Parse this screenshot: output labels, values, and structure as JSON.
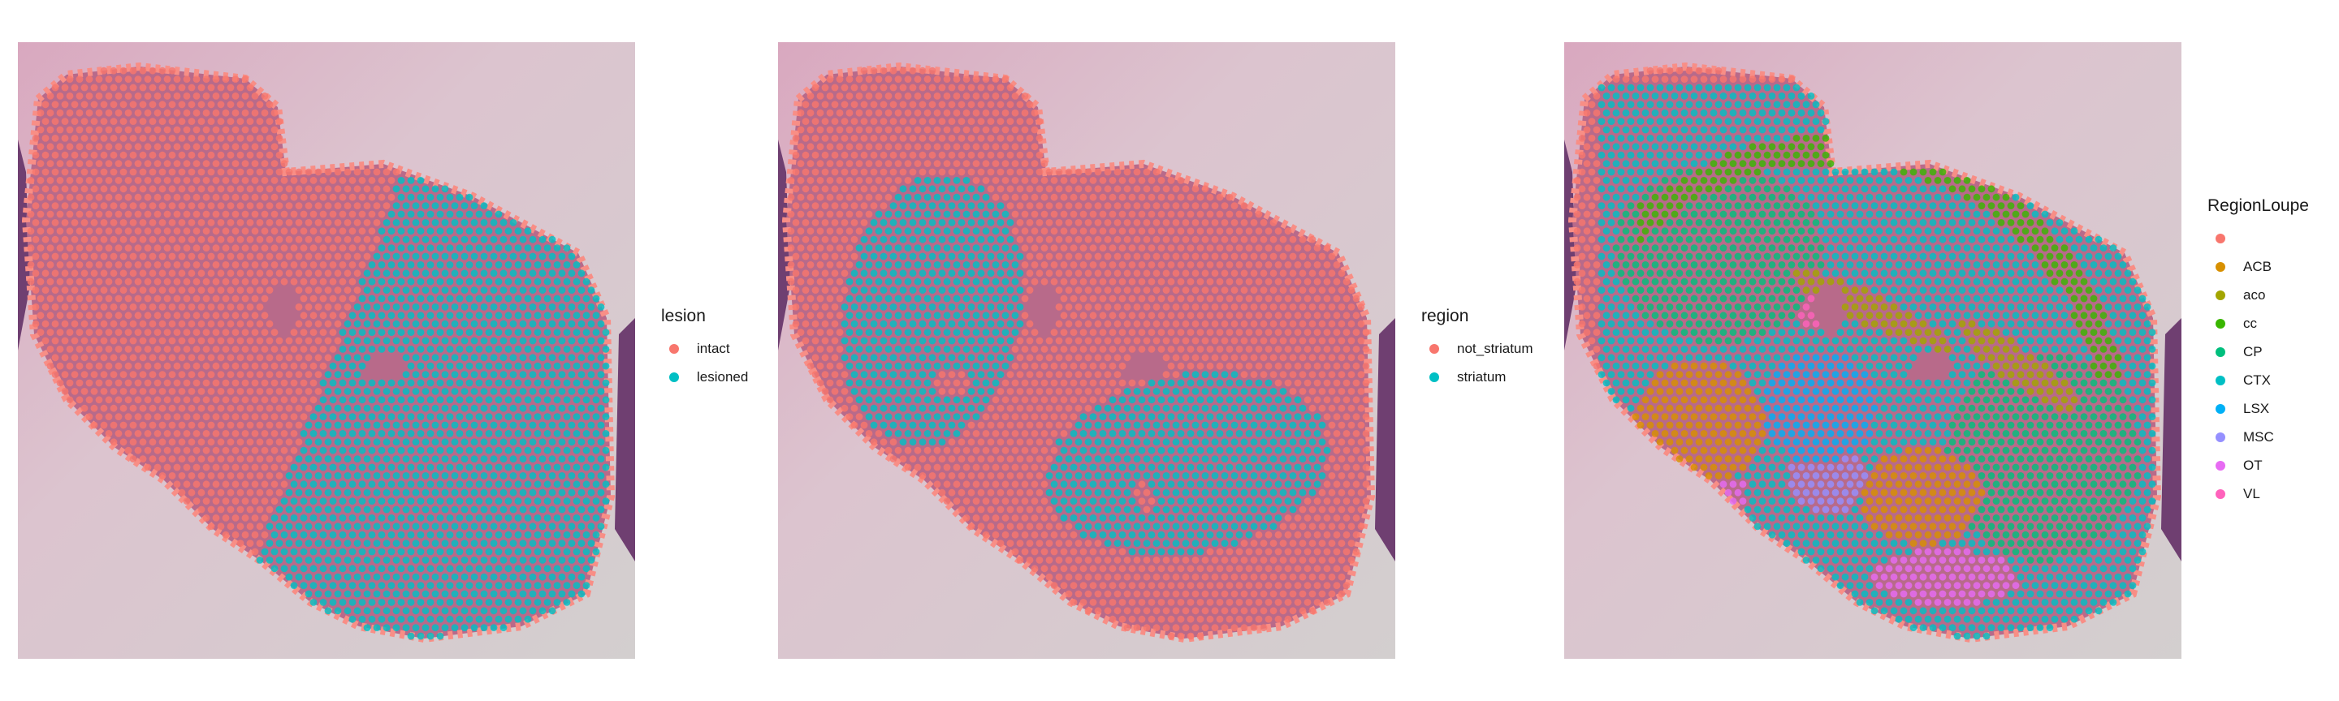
{
  "colors": {
    "tissue_background": "#d3cfcf",
    "pink_stain": "#c98aa8",
    "purple_edge": "#6f3f71"
  },
  "legend_keys": {
    "intact": "#F8766D",
    "lesioned": "#00BFC4",
    "not_striatum": "#F8766D",
    "striatum": "#00BFC4",
    "blank": "#F8766D",
    "ACB": "#D89000",
    "aco": "#A3A500",
    "cc": "#39B600",
    "CP": "#00BF7D",
    "CTX": "#00BFC4",
    "LSX": "#00B0F6",
    "MSC": "#9590FF",
    "OT": "#E76BF3",
    "VL": "#FF62BC"
  },
  "chart_data": [
    {
      "type": "scatter",
      "title": "",
      "xlabel": "",
      "ylabel": "",
      "legend_position": "right",
      "legend": {
        "title": "lesion",
        "entries": [
          {
            "label": "intact",
            "color": "#F8766D"
          },
          {
            "label": "lesioned",
            "color": "#00BFC4"
          }
        ]
      },
      "series": [
        {
          "name": "intact",
          "description_region": "left hemisphere of the section"
        },
        {
          "name": "lesioned",
          "description_region": "right lobe of the section"
        }
      ]
    },
    {
      "type": "scatter",
      "title": "",
      "xlabel": "",
      "ylabel": "",
      "legend_position": "right",
      "legend": {
        "title": "region",
        "entries": [
          {
            "label": "not_striatum",
            "color": "#F8766D"
          },
          {
            "label": "striatum",
            "color": "#00BFC4"
          }
        ]
      },
      "series": [
        {
          "name": "not_striatum"
        },
        {
          "name": "striatum"
        }
      ]
    },
    {
      "type": "scatter",
      "title": "",
      "xlabel": "",
      "ylabel": "",
      "legend_position": "right",
      "legend": {
        "title": "RegionLoupe",
        "entries": [
          {
            "label": "",
            "color": "#F8766D"
          },
          {
            "label": "ACB",
            "color": "#D89000"
          },
          {
            "label": "aco",
            "color": "#A3A500"
          },
          {
            "label": "cc",
            "color": "#39B600"
          },
          {
            "label": "CP",
            "color": "#00BF7D"
          },
          {
            "label": "CTX",
            "color": "#00BFC4"
          },
          {
            "label": "LSX",
            "color": "#00B0F6"
          },
          {
            "label": "MSC",
            "color": "#9590FF"
          },
          {
            "label": "OT",
            "color": "#E76BF3"
          },
          {
            "label": "VL",
            "color": "#FF62BC"
          }
        ]
      },
      "series": [
        {
          "name": ""
        },
        {
          "name": "ACB"
        },
        {
          "name": "aco"
        },
        {
          "name": "cc"
        },
        {
          "name": "CP"
        },
        {
          "name": "CTX"
        },
        {
          "name": "LSX"
        },
        {
          "name": "MSC"
        },
        {
          "name": "OT"
        },
        {
          "name": "VL"
        }
      ]
    }
  ]
}
